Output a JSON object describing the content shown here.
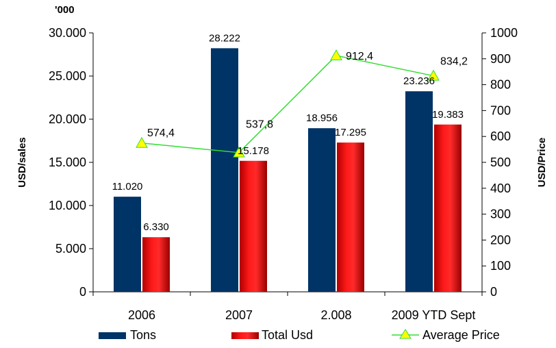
{
  "chart_data": {
    "type": "bar",
    "categories": [
      "2006",
      "2007",
      "2.008",
      "2009 YTD Sept"
    ],
    "unit_note": "'000",
    "ylabel_left": "USD/sales",
    "ylabel_right": "USD/Price",
    "ylim_left": [
      0,
      30000
    ],
    "ylim_right": [
      0,
      1000
    ],
    "yticks_left": [
      "0",
      "5.000",
      "10.000",
      "15.000",
      "20.000",
      "25.000",
      "30.000"
    ],
    "yticks_right": [
      "0",
      "100",
      "200",
      "300",
      "400",
      "500",
      "600",
      "700",
      "800",
      "900",
      "1000"
    ],
    "grid": false,
    "legend_position": "bottom",
    "series": [
      {
        "name": "Tons",
        "type": "bar",
        "axis": "left",
        "color": "#003366",
        "values": [
          11020,
          28222,
          18956,
          23236
        ],
        "labels": [
          "11.020",
          "28.222",
          "18.956",
          "23.236"
        ]
      },
      {
        "name": "Total Usd",
        "type": "bar",
        "axis": "left",
        "color": "#ff0000",
        "values": [
          6330,
          15178,
          17295,
          19383
        ],
        "labels": [
          "6.330",
          "15.178",
          "17.295",
          "19.383"
        ]
      },
      {
        "name": "Average Price",
        "type": "line",
        "axis": "right",
        "color": "#33dd33",
        "marker": "triangle",
        "marker_color": "#ffff00",
        "values": [
          574.4,
          537.8,
          912.4,
          834.2
        ],
        "labels": [
          "574,4",
          "537,8",
          "912,4",
          "834,2"
        ]
      }
    ]
  }
}
